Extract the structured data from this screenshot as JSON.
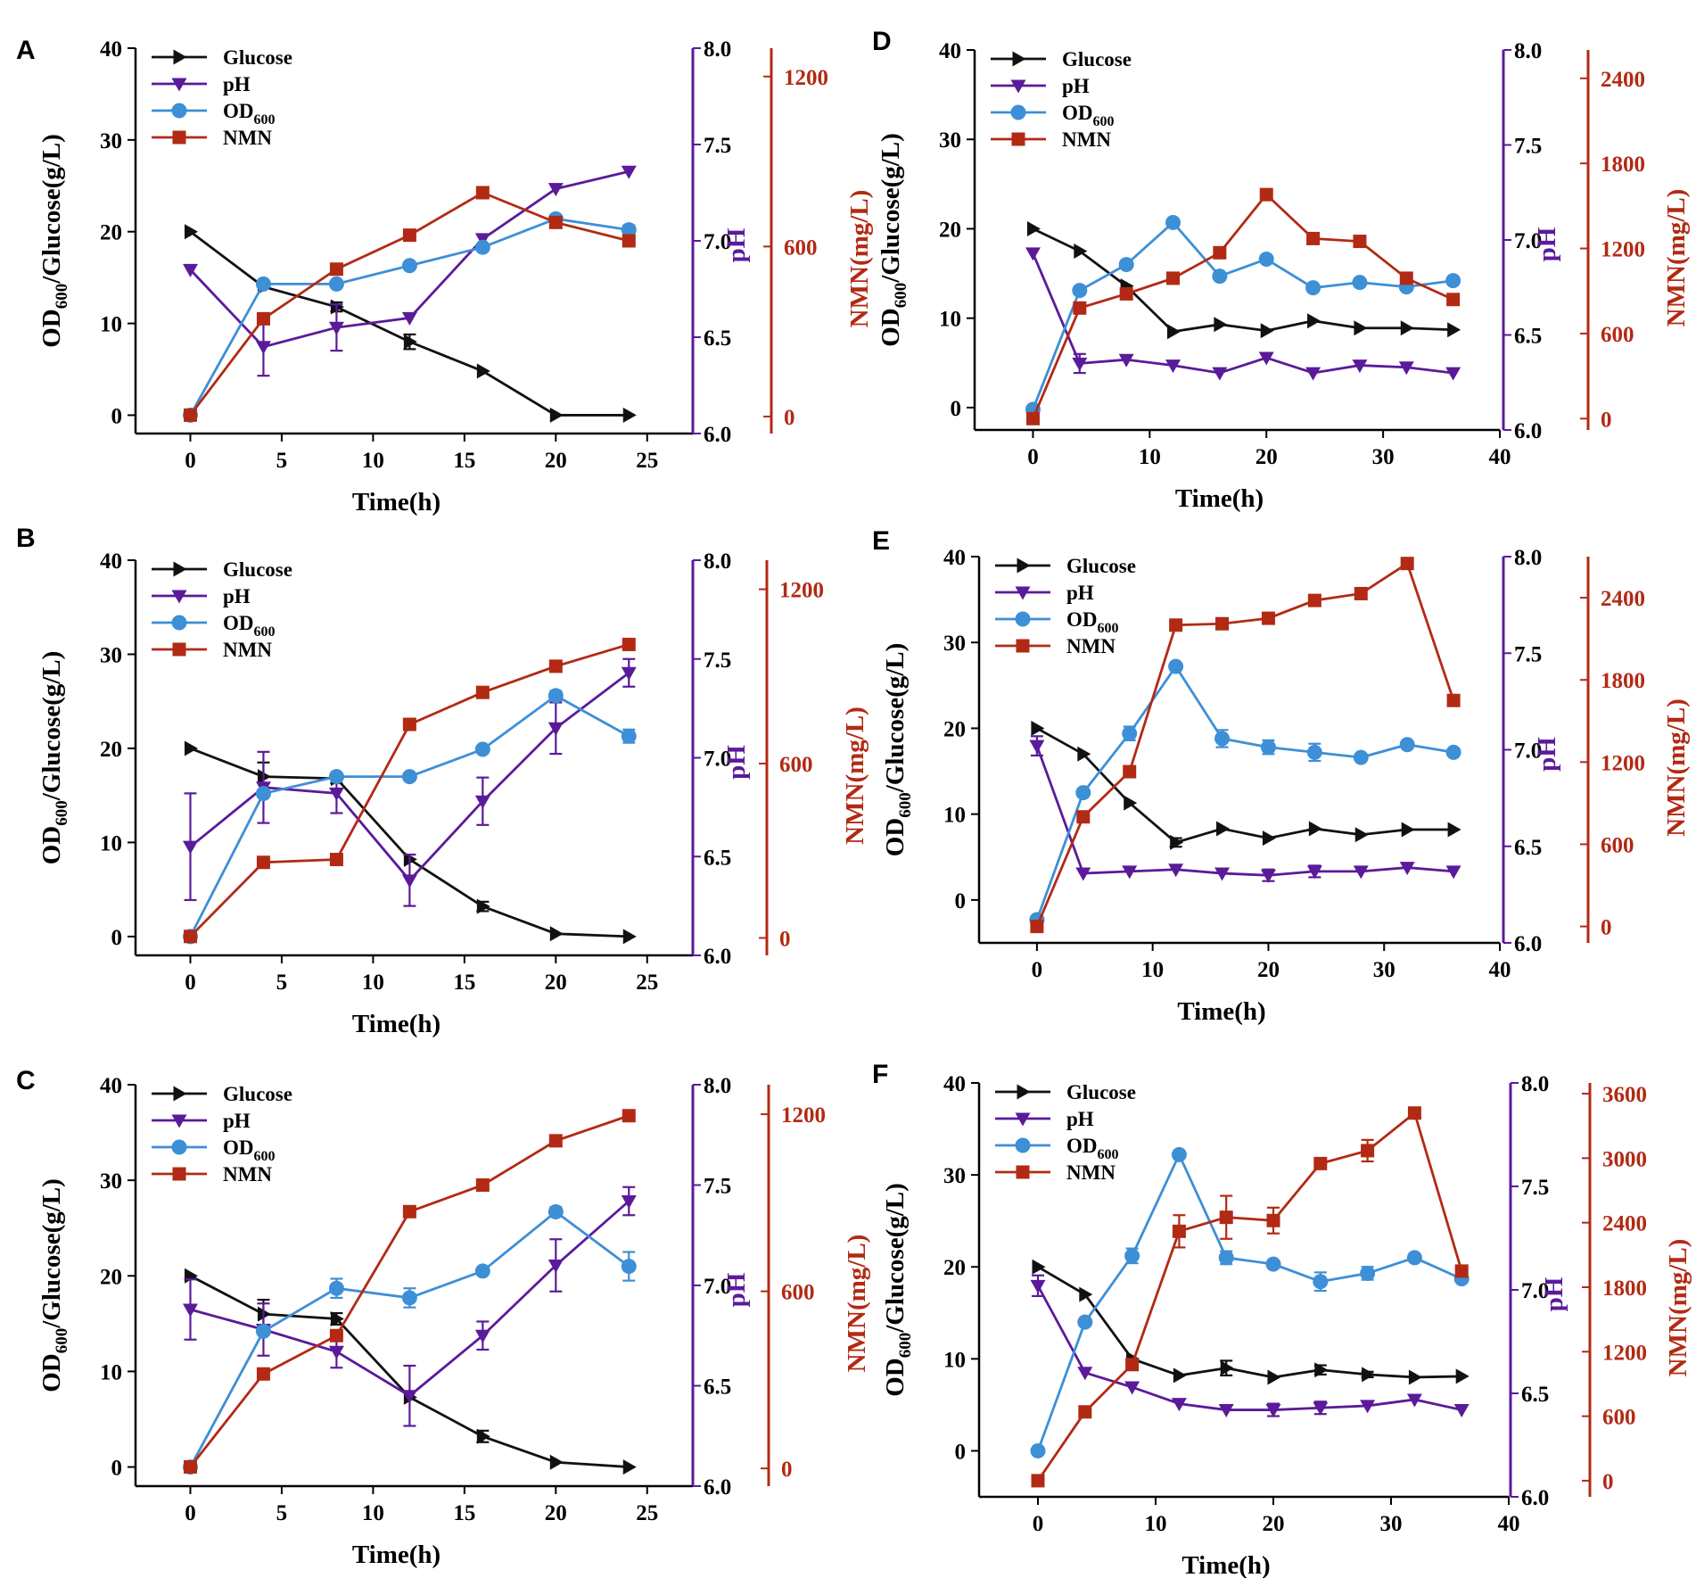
{
  "figure": {
    "legend_labels": [
      "Glucose",
      "pH",
      "OD",
      "NMN"
    ],
    "legend_sub": "600",
    "xlabel": "Time(h)",
    "ylabel_main": "OD",
    "ylabel_sub": "600",
    "ylabel_rest": "/Glucose(g/L)",
    "ylabel_ph": "pH",
    "ylabel_nmn": "NMN(mg/L)",
    "colors": {
      "glucose": "#111111",
      "ph": "#5b1a9a",
      "od": "#3d8fd6",
      "nmn": "#b22a14"
    }
  },
  "chart_data": [
    {
      "panel": "A",
      "type": "line",
      "xlim": [
        -3,
        27.5
      ],
      "xticks": [
        0,
        5,
        10,
        15,
        20,
        25
      ],
      "left_ylim": [
        -2,
        40
      ],
      "left_yticks": [
        0,
        10,
        20,
        30,
        40
      ],
      "ph_ylim": [
        6.0,
        8.0
      ],
      "ph_yticks": [
        "6.0",
        "6.5",
        "7.0",
        "7.5",
        "8.0"
      ],
      "nmn_ylim": [
        -60,
        1300
      ],
      "nmn_yticks": [
        0,
        600,
        1200
      ],
      "series": [
        {
          "name": "Glucose",
          "axis": "left",
          "marker": "triangle-right",
          "x": [
            0,
            4,
            8,
            12,
            16,
            20,
            24
          ],
          "values": [
            20,
            14,
            11.8,
            8,
            4.8,
            0,
            0
          ],
          "err": [
            0,
            0,
            0.5,
            0.8,
            0,
            0,
            0
          ]
        },
        {
          "name": "pH",
          "axis": "ph",
          "marker": "triangle-down",
          "x": [
            0,
            4,
            8,
            12,
            16,
            20,
            24
          ],
          "values": [
            6.85,
            6.45,
            6.55,
            6.6,
            7.01,
            7.27,
            7.36
          ],
          "err": [
            0,
            0.15,
            0.12,
            0,
            0,
            0,
            0
          ]
        },
        {
          "name": "OD600",
          "axis": "left",
          "marker": "circle",
          "x": [
            0,
            4,
            8,
            12,
            16,
            20,
            24
          ],
          "values": [
            0,
            14.3,
            14.3,
            16.3,
            18.3,
            21.4,
            20.2
          ],
          "err": [
            0,
            0,
            0,
            0,
            0,
            0,
            0.5
          ]
        },
        {
          "name": "NMN",
          "axis": "nmn",
          "marker": "square",
          "x": [
            0,
            4,
            8,
            12,
            16,
            20,
            24
          ],
          "values": [
            5,
            345,
            520,
            640,
            790,
            685,
            620
          ],
          "err": [
            0,
            0,
            0,
            0,
            0,
            0,
            0
          ]
        }
      ]
    },
    {
      "panel": "B",
      "type": "line",
      "xlim": [
        -3,
        27.5
      ],
      "xticks": [
        0,
        5,
        10,
        15,
        20,
        25
      ],
      "left_ylim": [
        -2,
        40
      ],
      "left_yticks": [
        0,
        10,
        20,
        30,
        40
      ],
      "ph_ylim": [
        6.0,
        8.0
      ],
      "ph_yticks": [
        "6.0",
        "6.5",
        "7.0",
        "7.5",
        "8.0"
      ],
      "nmn_ylim": [
        -60,
        1300
      ],
      "nmn_yticks": [
        0,
        600,
        1200
      ],
      "series": [
        {
          "name": "Glucose",
          "axis": "left",
          "marker": "triangle-right",
          "x": [
            0,
            4,
            8,
            12,
            16,
            20,
            24
          ],
          "values": [
            20,
            17,
            16.8,
            8.2,
            3.2,
            0.3,
            0
          ],
          "err": [
            0,
            1.5,
            0.5,
            0,
            0.5,
            0,
            0
          ]
        },
        {
          "name": "pH",
          "axis": "ph",
          "marker": "triangle-down",
          "x": [
            0,
            4,
            8,
            12,
            16,
            20,
            24
          ],
          "values": [
            6.55,
            6.85,
            6.82,
            6.38,
            6.78,
            7.15,
            7.43
          ],
          "err": [
            0.27,
            0.18,
            0.1,
            0.13,
            0.12,
            0.13,
            0.07
          ]
        },
        {
          "name": "OD600",
          "axis": "left",
          "marker": "circle",
          "x": [
            0,
            4,
            8,
            12,
            16,
            20,
            24
          ],
          "values": [
            0,
            15.2,
            17,
            17,
            19.9,
            25.6,
            21.3
          ],
          "err": [
            0,
            0,
            0,
            0,
            0,
            0.5,
            0.7
          ]
        },
        {
          "name": "NMN",
          "axis": "nmn",
          "marker": "square",
          "x": [
            0,
            4,
            8,
            12,
            16,
            20,
            24
          ],
          "values": [
            5,
            260,
            270,
            735,
            845,
            935,
            1010
          ],
          "err": [
            0,
            0,
            0,
            0,
            0,
            0,
            0
          ]
        }
      ]
    },
    {
      "panel": "C",
      "type": "line",
      "xlim": [
        -3,
        27.5
      ],
      "xticks": [
        0,
        5,
        10,
        15,
        20,
        25
      ],
      "left_ylim": [
        -2,
        40
      ],
      "left_yticks": [
        0,
        10,
        20,
        30,
        40
      ],
      "ph_ylim": [
        6.0,
        8.0
      ],
      "ph_yticks": [
        "6.0",
        "6.5",
        "7.0",
        "7.5",
        "8.0"
      ],
      "nmn_ylim": [
        -60,
        1300
      ],
      "nmn_yticks": [
        0,
        600,
        1200
      ],
      "series": [
        {
          "name": "Glucose",
          "axis": "left",
          "marker": "triangle-right",
          "x": [
            0,
            4,
            8,
            12,
            16,
            20,
            24
          ],
          "values": [
            20,
            16,
            15.5,
            7.3,
            3.2,
            0.5,
            0
          ],
          "err": [
            0,
            1.5,
            0.6,
            0,
            0.6,
            0,
            0
          ]
        },
        {
          "name": "pH",
          "axis": "ph",
          "marker": "triangle-down",
          "x": [
            0,
            4,
            8,
            12,
            16,
            20,
            24
          ],
          "values": [
            6.88,
            6.78,
            6.67,
            6.45,
            6.75,
            7.1,
            7.42
          ],
          "err": [
            0.15,
            0.13,
            0.08,
            0.15,
            0.07,
            0.13,
            0.07
          ]
        },
        {
          "name": "OD600",
          "axis": "left",
          "marker": "circle",
          "x": [
            0,
            4,
            8,
            12,
            16,
            20,
            24
          ],
          "values": [
            0,
            14.2,
            18.7,
            17.7,
            20.5,
            26.7,
            21
          ],
          "err": [
            0,
            0,
            1,
            1,
            0,
            0.5,
            1.5
          ]
        },
        {
          "name": "NMN",
          "axis": "nmn",
          "marker": "square",
          "x": [
            0,
            4,
            8,
            12,
            16,
            20,
            24
          ],
          "values": [
            5,
            320,
            450,
            870,
            960,
            1110,
            1195
          ],
          "err": [
            0,
            0,
            0,
            0,
            0,
            0,
            0
          ]
        }
      ]
    },
    {
      "panel": "D",
      "type": "line",
      "xlim": [
        -5,
        40
      ],
      "xticks": [
        0,
        10,
        20,
        30,
        40
      ],
      "left_ylim": [
        -2.5,
        40
      ],
      "left_yticks": [
        0,
        10,
        20,
        30,
        40
      ],
      "ph_ylim": [
        6.0,
        8.0
      ],
      "ph_yticks": [
        "6.0",
        "6.5",
        "7.0",
        "7.5",
        "8.0"
      ],
      "nmn_ylim": [
        -80,
        2600
      ],
      "nmn_yticks": [
        0,
        600,
        1200,
        1800,
        2400
      ],
      "series": [
        {
          "name": "Glucose",
          "axis": "left",
          "marker": "triangle-right",
          "x": [
            0,
            4,
            8,
            12,
            16,
            20,
            24,
            28,
            32,
            36
          ],
          "values": [
            20,
            17.5,
            13.6,
            8.5,
            9.3,
            8.6,
            9.7,
            8.9,
            8.9,
            8.7
          ],
          "err": [
            0,
            0,
            0,
            0,
            0,
            0,
            0,
            0,
            0,
            0
          ]
        },
        {
          "name": "pH",
          "axis": "ph",
          "marker": "triangle-down",
          "x": [
            0,
            4,
            8,
            12,
            16,
            20,
            24,
            28,
            32,
            36
          ],
          "values": [
            6.93,
            6.35,
            6.37,
            6.34,
            6.3,
            6.38,
            6.3,
            6.34,
            6.33,
            6.3
          ],
          "err": [
            0,
            0.05,
            0,
            0,
            0,
            0,
            0,
            0,
            0,
            0
          ]
        },
        {
          "name": "OD600",
          "axis": "left",
          "marker": "circle",
          "x": [
            0,
            4,
            8,
            12,
            16,
            20,
            24,
            28,
            32,
            36
          ],
          "values": [
            -0.2,
            13.1,
            16,
            20.7,
            14.7,
            16.6,
            13.4,
            14,
            13.5,
            14.2
          ],
          "err": [
            0,
            0,
            0,
            0,
            0,
            0,
            0,
            0,
            0,
            0
          ]
        },
        {
          "name": "NMN",
          "axis": "nmn",
          "marker": "square",
          "x": [
            0,
            4,
            8,
            12,
            16,
            20,
            24,
            28,
            32,
            36
          ],
          "values": [
            0,
            780,
            880,
            990,
            1170,
            1580,
            1270,
            1250,
            990,
            840
          ],
          "err": [
            0,
            0,
            0,
            0,
            0,
            0,
            0,
            0,
            0,
            0
          ]
        }
      ]
    },
    {
      "panel": "E",
      "type": "line",
      "xlim": [
        -5,
        40
      ],
      "xticks": [
        0,
        10,
        20,
        30,
        40
      ],
      "left_ylim": [
        -5,
        40
      ],
      "left_yticks": [
        0,
        10,
        20,
        30,
        40
      ],
      "ph_ylim": [
        6.0,
        8.0
      ],
      "ph_yticks": [
        "6.0",
        "6.5",
        "7.0",
        "7.5",
        "8.0"
      ],
      "nmn_ylim": [
        -120,
        2700
      ],
      "nmn_yticks": [
        0,
        600,
        1200,
        1800,
        2400
      ],
      "series": [
        {
          "name": "Glucose",
          "axis": "left",
          "marker": "triangle-right",
          "x": [
            0,
            4,
            8,
            12,
            16,
            20,
            24,
            28,
            32,
            36
          ],
          "values": [
            20,
            17,
            11.3,
            6.7,
            8.3,
            7.2,
            8.3,
            7.6,
            8.2,
            8.2
          ],
          "err": [
            0,
            0,
            0,
            0.5,
            0,
            0,
            0,
            0,
            0,
            0
          ]
        },
        {
          "name": "pH",
          "axis": "ph",
          "marker": "triangle-down",
          "x": [
            0,
            4,
            8,
            12,
            16,
            20,
            24,
            28,
            32,
            36
          ],
          "values": [
            7.02,
            6.36,
            6.37,
            6.38,
            6.36,
            6.35,
            6.37,
            6.37,
            6.39,
            6.37
          ],
          "err": [
            0.05,
            0,
            0,
            0,
            0,
            0.03,
            0.03,
            0,
            0,
            0
          ]
        },
        {
          "name": "OD600",
          "axis": "left",
          "marker": "circle",
          "x": [
            0,
            4,
            8,
            12,
            16,
            20,
            24,
            28,
            32,
            36
          ],
          "values": [
            -2.3,
            12.5,
            19.4,
            27.2,
            18.8,
            17.8,
            17.2,
            16.6,
            18.1,
            17.2
          ],
          "err": [
            0,
            0,
            0.8,
            0,
            1,
            0.8,
            1,
            0,
            0,
            0
          ]
        },
        {
          "name": "NMN",
          "axis": "nmn",
          "marker": "square",
          "x": [
            0,
            4,
            8,
            12,
            16,
            20,
            24,
            28,
            32,
            36
          ],
          "values": [
            0,
            800,
            1130,
            2200,
            2210,
            2250,
            2380,
            2430,
            2650,
            1650
          ],
          "err": [
            0,
            0,
            0,
            0,
            0,
            0,
            0,
            0,
            0,
            0
          ]
        }
      ]
    },
    {
      "panel": "F",
      "type": "line",
      "xlim": [
        -5,
        40
      ],
      "xticks": [
        0,
        10,
        20,
        30,
        40
      ],
      "left_ylim": [
        -5,
        40
      ],
      "left_yticks": [
        0,
        10,
        20,
        30,
        40
      ],
      "ph_ylim": [
        6.0,
        8.0
      ],
      "ph_yticks": [
        "6.0",
        "6.5",
        "7.0",
        "7.5",
        "8.0"
      ],
      "nmn_ylim": [
        -150,
        3700
      ],
      "nmn_yticks": [
        0,
        600,
        1200,
        1800,
        2400,
        3000,
        3600
      ],
      "series": [
        {
          "name": "Glucose",
          "axis": "left",
          "marker": "triangle-right",
          "x": [
            0,
            4,
            8,
            12,
            16,
            20,
            24,
            28,
            32,
            36
          ],
          "values": [
            20,
            17,
            10,
            8.2,
            9,
            8,
            8.8,
            8.3,
            8,
            8.1
          ],
          "err": [
            0,
            0,
            0,
            0,
            0.8,
            0,
            0.5,
            0.3,
            0,
            0
          ]
        },
        {
          "name": "pH",
          "axis": "ph",
          "marker": "triangle-down",
          "x": [
            0,
            4,
            8,
            12,
            16,
            20,
            24,
            28,
            32,
            36
          ],
          "values": [
            7.02,
            6.6,
            6.53,
            6.45,
            6.42,
            6.42,
            6.43,
            6.44,
            6.47,
            6.42
          ],
          "err": [
            0.05,
            0,
            0,
            0,
            0,
            0.03,
            0.03,
            0,
            0,
            0
          ]
        },
        {
          "name": "OD600",
          "axis": "left",
          "marker": "circle",
          "x": [
            0,
            4,
            8,
            12,
            16,
            20,
            24,
            28,
            32,
            36
          ],
          "values": [
            0,
            14,
            21.2,
            32.2,
            21,
            20.3,
            18.4,
            19.3,
            21,
            18.7
          ],
          "err": [
            0,
            0,
            0.8,
            0,
            0.7,
            0,
            1,
            0.7,
            0,
            0
          ]
        },
        {
          "name": "NMN",
          "axis": "nmn",
          "marker": "square",
          "x": [
            0,
            4,
            8,
            12,
            16,
            20,
            24,
            28,
            32,
            36
          ],
          "values": [
            0,
            640,
            1080,
            2320,
            2450,
            2420,
            2950,
            3070,
            3420,
            1950
          ],
          "err": [
            0,
            0,
            0,
            150,
            200,
            120,
            0,
            100,
            0,
            0
          ]
        }
      ]
    }
  ]
}
